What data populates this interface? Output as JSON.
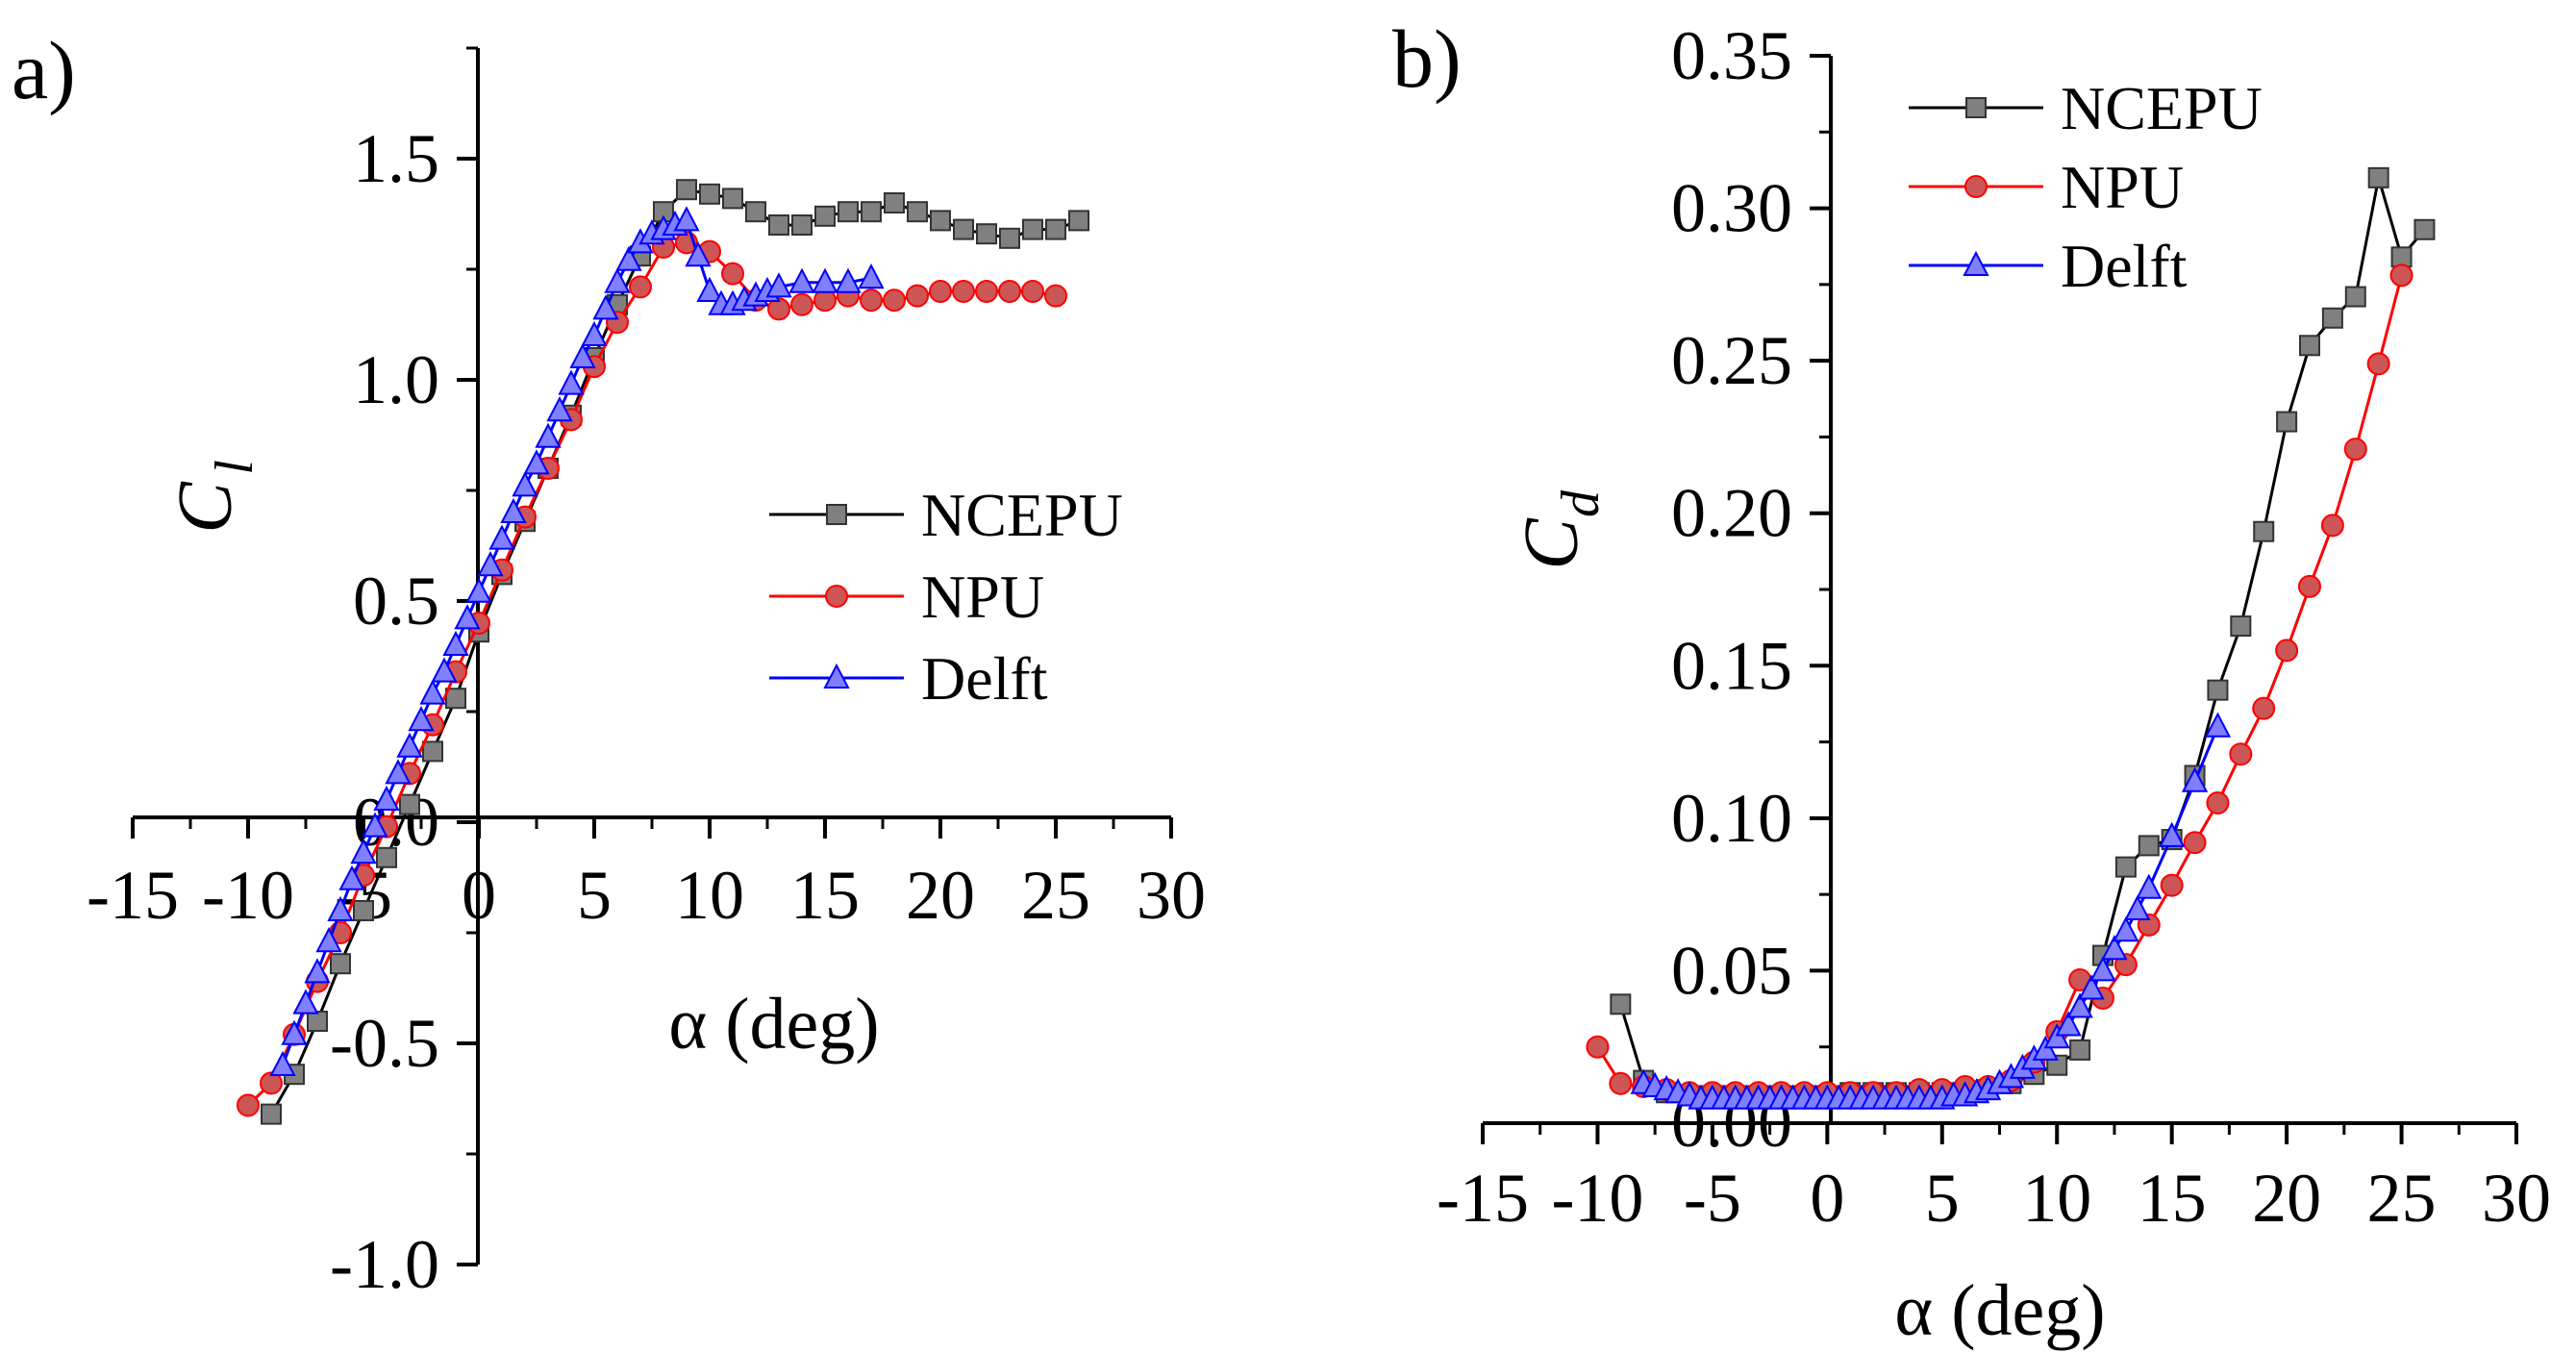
{
  "chart_data": [
    {
      "panel_label": "a)",
      "type": "line",
      "title": "",
      "ylabel_main": "C",
      "ylabel_sub": "l",
      "xlabel": "α (deg)",
      "xlim": [
        -15,
        30
      ],
      "ylim": [
        -1.0,
        1.75
      ],
      "xticks": [
        -15,
        -10,
        -5,
        0,
        5,
        10,
        15,
        20,
        25,
        30
      ],
      "xtick_labels": [
        "-15",
        "-10",
        "-5",
        "0",
        "5",
        "10",
        "15",
        "20",
        "25",
        "30"
      ],
      "yticks": [
        -1.0,
        -0.5,
        0.0,
        0.5,
        1.0,
        1.5
      ],
      "ytick_labels": [
        "-1.0",
        "-0.5",
        "0.0",
        "0.5",
        "1.0",
        "1.5"
      ],
      "legend_position": "center-right",
      "series": [
        {
          "name": "NCEPU",
          "color": "#000000",
          "marker": "square",
          "marker_fill": "#808080",
          "x": [
            -9,
            -8,
            -7,
            -6,
            -5,
            -4,
            -3,
            -2,
            -1,
            0,
            1,
            2,
            3,
            4,
            5,
            6,
            7,
            8,
            9,
            10,
            11,
            12,
            13,
            14,
            15,
            16,
            17,
            18,
            19,
            20,
            21,
            22,
            23,
            24,
            25,
            26
          ],
          "y": [
            -0.66,
            -0.57,
            -0.45,
            -0.32,
            -0.2,
            -0.08,
            0.04,
            0.16,
            0.28,
            0.43,
            0.56,
            0.68,
            0.8,
            0.92,
            1.05,
            1.17,
            1.28,
            1.38,
            1.43,
            1.42,
            1.41,
            1.38,
            1.35,
            1.35,
            1.37,
            1.38,
            1.38,
            1.4,
            1.38,
            1.36,
            1.34,
            1.33,
            1.32,
            1.34,
            1.34,
            1.36
          ]
        },
        {
          "name": "NPU",
          "color": "#ff0000",
          "marker": "circle",
          "marker_fill": "#cc5555",
          "x": [
            -10,
            -9,
            -8,
            -7,
            -6,
            -5,
            -4,
            -3,
            -2,
            -1,
            0,
            1,
            2,
            3,
            4,
            5,
            6,
            7,
            8,
            9,
            10,
            11,
            12,
            13,
            14,
            15,
            16,
            17,
            18,
            19,
            20,
            21,
            22,
            23,
            24,
            25
          ],
          "y": [
            -0.64,
            -0.59,
            -0.48,
            -0.36,
            -0.25,
            -0.12,
            -0.01,
            0.11,
            0.22,
            0.34,
            0.45,
            0.57,
            0.69,
            0.8,
            0.91,
            1.03,
            1.13,
            1.21,
            1.3,
            1.31,
            1.29,
            1.24,
            1.18,
            1.16,
            1.17,
            1.18,
            1.19,
            1.18,
            1.18,
            1.19,
            1.2,
            1.2,
            1.2,
            1.2,
            1.2,
            1.19
          ]
        },
        {
          "name": "Delft",
          "color": "#0000ff",
          "marker": "triangle",
          "marker_fill": "#8080ff",
          "x": [
            -8.5,
            -8,
            -7.5,
            -7,
            -6.5,
            -6,
            -5.5,
            -5,
            -4.5,
            -4,
            -3.5,
            -3,
            -2.5,
            -2,
            -1.5,
            -1,
            -0.5,
            0,
            0.5,
            1,
            1.5,
            2,
            2.5,
            3,
            3.5,
            4,
            4.5,
            5,
            5.5,
            6,
            6.5,
            7,
            7.5,
            8,
            8.5,
            9,
            9.5,
            10,
            10.5,
            11,
            11.5,
            12,
            12.5,
            13,
            14,
            15,
            16,
            17
          ],
          "y": [
            -0.55,
            -0.48,
            -0.41,
            -0.34,
            -0.27,
            -0.2,
            -0.13,
            -0.07,
            -0.01,
            0.05,
            0.11,
            0.17,
            0.23,
            0.29,
            0.34,
            0.4,
            0.46,
            0.52,
            0.58,
            0.64,
            0.7,
            0.76,
            0.81,
            0.87,
            0.93,
            0.99,
            1.05,
            1.1,
            1.16,
            1.22,
            1.27,
            1.31,
            1.33,
            1.34,
            1.35,
            1.36,
            1.28,
            1.2,
            1.17,
            1.17,
            1.18,
            1.19,
            1.2,
            1.21,
            1.22,
            1.22,
            1.22,
            1.23
          ]
        }
      ]
    },
    {
      "panel_label": "b)",
      "type": "line",
      "title": "",
      "ylabel_main": "C",
      "ylabel_sub": "d",
      "xlabel": "α (deg)",
      "xlim": [
        -15,
        30
      ],
      "ylim": [
        0.0,
        0.35
      ],
      "xticks": [
        -15,
        -10,
        -5,
        0,
        5,
        10,
        15,
        20,
        25,
        30
      ],
      "xtick_labels": [
        "-15",
        "-10",
        "-5",
        "0",
        "5",
        "10",
        "15",
        "20",
        "25",
        "30"
      ],
      "yticks": [
        0.0,
        0.05,
        0.1,
        0.15,
        0.2,
        0.25,
        0.3,
        0.35
      ],
      "ytick_labels": [
        "0.00",
        "0.05",
        "0.10",
        "0.15",
        "0.20",
        "0.25",
        "0.30",
        "0.35"
      ],
      "legend_position": "top-left",
      "series": [
        {
          "name": "NCEPU",
          "color": "#000000",
          "marker": "square",
          "marker_fill": "#808080",
          "x": [
            -9,
            -8,
            -7,
            -6,
            -5,
            -4,
            -3,
            -2,
            -1,
            0,
            1,
            2,
            3,
            4,
            5,
            6,
            7,
            8,
            9,
            10,
            11,
            12,
            13,
            14,
            15,
            16,
            17,
            18,
            19,
            20,
            21,
            22,
            23,
            24,
            25,
            26
          ],
          "y": [
            0.039,
            0.014,
            0.01,
            0.009,
            0.009,
            0.009,
            0.009,
            0.009,
            0.009,
            0.009,
            0.01,
            0.01,
            0.01,
            0.01,
            0.01,
            0.01,
            0.011,
            0.013,
            0.016,
            0.019,
            0.024,
            0.055,
            0.084,
            0.091,
            0.093,
            0.114,
            0.142,
            0.163,
            0.194,
            0.23,
            0.255,
            0.264,
            0.271,
            0.31,
            0.284,
            0.293
          ]
        },
        {
          "name": "NPU",
          "color": "#ff0000",
          "marker": "circle",
          "marker_fill": "#cc5555",
          "x": [
            -10,
            -9,
            -8,
            -7,
            -6,
            -5,
            -4,
            -3,
            -2,
            -1,
            0,
            1,
            2,
            3,
            4,
            5,
            6,
            7,
            8,
            9,
            10,
            11,
            12,
            13,
            14,
            15,
            16,
            17,
            18,
            19,
            20,
            21,
            22,
            23,
            24,
            25
          ],
          "y": [
            0.025,
            0.013,
            0.012,
            0.011,
            0.01,
            0.01,
            0.01,
            0.01,
            0.01,
            0.01,
            0.01,
            0.01,
            0.01,
            0.01,
            0.011,
            0.011,
            0.012,
            0.012,
            0.014,
            0.02,
            0.03,
            0.047,
            0.041,
            0.052,
            0.065,
            0.078,
            0.092,
            0.105,
            0.121,
            0.136,
            0.155,
            0.176,
            0.196,
            0.221,
            0.249,
            0.278
          ]
        },
        {
          "name": "Delft",
          "color": "#0000ff",
          "marker": "triangle",
          "marker_fill": "#8080ff",
          "x": [
            -8,
            -7.5,
            -7,
            -6.5,
            -6,
            -5.5,
            -5,
            -4.5,
            -4,
            -3.5,
            -3,
            -2.5,
            -2,
            -1.5,
            -1,
            -0.5,
            0,
            0.5,
            1,
            1.5,
            2,
            2.5,
            3,
            3.5,
            4,
            4.5,
            5,
            5.5,
            6,
            6.5,
            7,
            7.5,
            8,
            8.5,
            9,
            9.5,
            10,
            10.5,
            11,
            11.5,
            12,
            12.5,
            13,
            13.5,
            14,
            15,
            16,
            17
          ],
          "y": [
            0.013,
            0.012,
            0.011,
            0.01,
            0.009,
            0.008,
            0.008,
            0.008,
            0.008,
            0.008,
            0.008,
            0.008,
            0.008,
            0.008,
            0.008,
            0.008,
            0.008,
            0.008,
            0.008,
            0.008,
            0.008,
            0.008,
            0.008,
            0.008,
            0.008,
            0.008,
            0.008,
            0.009,
            0.009,
            0.01,
            0.011,
            0.013,
            0.015,
            0.018,
            0.021,
            0.024,
            0.028,
            0.032,
            0.038,
            0.044,
            0.05,
            0.057,
            0.063,
            0.07,
            0.077,
            0.094,
            0.112,
            0.13
          ]
        }
      ]
    }
  ]
}
